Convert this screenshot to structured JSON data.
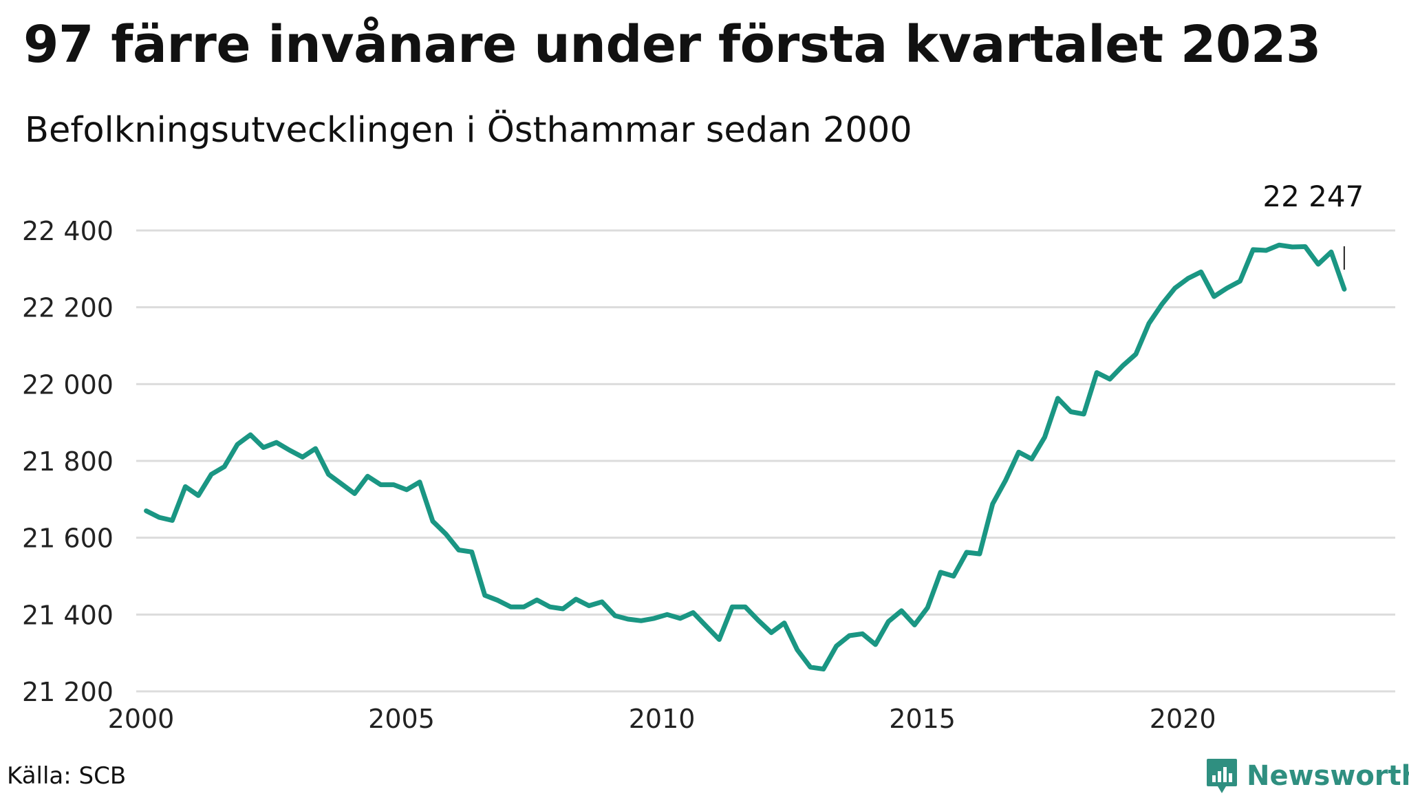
{
  "header": {
    "title": "97 färre invånare under första kvartalet 2023",
    "subtitle": "Befolkningsutvecklingen i Östhammar sedan 2000"
  },
  "footer": {
    "source": "Källa: SCB",
    "brand": "Newsworthy",
    "brand_icon": "bar-chart-speech-bubble-icon"
  },
  "colors": {
    "line": "#1a9683",
    "grid": "#dcdcdc",
    "brand": "#2f8f80"
  },
  "chart_data": {
    "type": "line",
    "xlim": [
      2000,
      2024
    ],
    "ylim": [
      21200,
      22400
    ],
    "x_ticks": [
      2000,
      2005,
      2010,
      2015,
      2020
    ],
    "x_tick_labels": [
      "2000",
      "2005",
      "2010",
      "2015",
      "2020"
    ],
    "y_ticks": [
      21200,
      21400,
      21600,
      21800,
      22000,
      22200,
      22400
    ],
    "y_tick_labels": [
      "21 200",
      "21 400",
      "21 600",
      "21 800",
      "22 000",
      "22 200",
      "22 400"
    ],
    "grid": "horizontal",
    "last_value_label": "22 247",
    "series": [
      {
        "values": [
          21670,
          21653,
          21645,
          21733,
          21710,
          21765,
          21785,
          21843,
          21868,
          21835,
          21848,
          21828,
          21810,
          21832,
          21765,
          21740,
          21715,
          21760,
          21738,
          21738,
          21725,
          21745,
          21643,
          21610,
          21568,
          21563,
          21450,
          21437,
          21420,
          21420,
          21438,
          21420,
          21415,
          21440,
          21423,
          21433,
          21397,
          21388,
          21384,
          21390,
          21400,
          21390,
          21405,
          21370,
          21335,
          21420,
          21420,
          21385,
          21353,
          21378,
          21308,
          21263,
          21258,
          21318,
          21345,
          21350,
          21322,
          21382,
          21410,
          21373,
          21418,
          21510,
          21500,
          21562,
          21558,
          21688,
          21750,
          21823,
          21805,
          21862,
          21963,
          21928,
          21922,
          22030,
          22013,
          22048,
          22078,
          22158,
          22208,
          22250,
          22275,
          22292,
          22228,
          22250,
          22268,
          22350,
          22348,
          22362,
          22357,
          22358,
          22312,
          22344,
          22247
        ]
      }
    ]
  }
}
